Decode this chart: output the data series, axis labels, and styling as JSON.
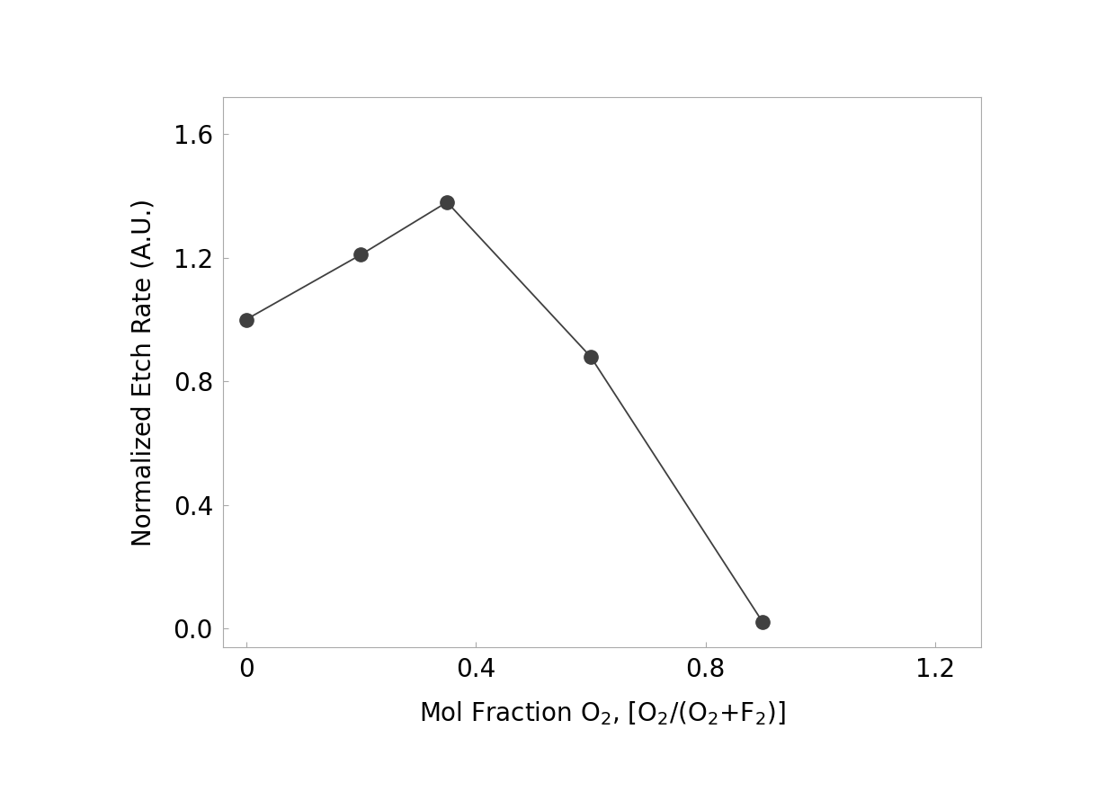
{
  "x": [
    0,
    0.2,
    0.35,
    0.6,
    0.9
  ],
  "y": [
    1.0,
    1.21,
    1.38,
    0.88,
    0.02
  ],
  "xlim": [
    -0.04,
    1.28
  ],
  "ylim": [
    -0.06,
    1.72
  ],
  "xticks": [
    0,
    0.4,
    0.8,
    1.2
  ],
  "yticks": [
    0.0,
    0.4,
    0.8,
    1.2,
    1.6
  ],
  "xticklabels": [
    "0",
    "0.4",
    "0.8",
    "1.2"
  ],
  "yticklabels": [
    "0.0",
    "0.4",
    "0.8",
    "1.2",
    "1.6"
  ],
  "xlabel": "Mol Fraction O$_2$, [O$_2$/(O$_2$+F$_2$)]",
  "ylabel": "Normalized Etch Rate (A.U.)",
  "line_color": "#404040",
  "marker_color": "#404040",
  "marker_size": 11,
  "line_width": 1.3,
  "background_color": "#ffffff",
  "label_fontsize": 20,
  "tick_fontsize": 20,
  "spine_color": "#aaaaaa",
  "spine_linewidth": 0.8
}
